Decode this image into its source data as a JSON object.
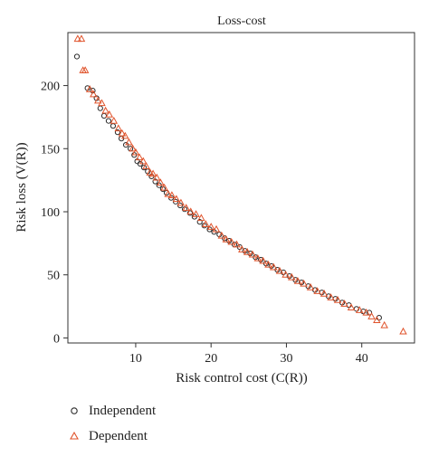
{
  "chart_data": {
    "type": "scatter",
    "title": "Loss-cost",
    "xlabel": "Risk control cost (C(R))",
    "ylabel": "Risk loss (V(R))",
    "xlim": [
      1,
      47
    ],
    "ylim": [
      -4,
      242
    ],
    "xticks": [
      10,
      20,
      30,
      40
    ],
    "yticks": [
      0,
      50,
      100,
      150,
      200
    ],
    "grid": false,
    "legend_position": "bottom-left",
    "series": [
      {
        "name": "Independent",
        "marker": "circle",
        "color": "#2b2b2b",
        "points": [
          [
            2.2,
            223
          ],
          [
            3.6,
            198
          ],
          [
            4.3,
            196
          ],
          [
            4.8,
            190
          ],
          [
            5.3,
            182
          ],
          [
            5.8,
            176
          ],
          [
            6.4,
            172
          ],
          [
            7.0,
            168
          ],
          [
            7.6,
            163
          ],
          [
            8.1,
            158
          ],
          [
            8.7,
            153
          ],
          [
            9.3,
            150
          ],
          [
            9.8,
            145
          ],
          [
            10.2,
            140
          ],
          [
            10.6,
            138
          ],
          [
            11.1,
            135
          ],
          [
            11.6,
            132
          ],
          [
            12.1,
            128
          ],
          [
            12.6,
            124
          ],
          [
            13.1,
            121
          ],
          [
            13.6,
            118
          ],
          [
            14.1,
            115
          ],
          [
            14.7,
            111
          ],
          [
            15.3,
            108
          ],
          [
            15.9,
            105
          ],
          [
            16.5,
            102
          ],
          [
            17.2,
            99
          ],
          [
            17.8,
            96
          ],
          [
            18.5,
            92
          ],
          [
            19.1,
            89
          ],
          [
            19.8,
            86
          ],
          [
            20.4,
            84
          ],
          [
            21.1,
            82
          ],
          [
            21.8,
            79
          ],
          [
            22.4,
            77
          ],
          [
            23.1,
            74
          ],
          [
            23.8,
            72
          ],
          [
            24.5,
            69
          ],
          [
            25.2,
            67
          ],
          [
            25.9,
            64
          ],
          [
            26.6,
            62
          ],
          [
            27.3,
            59
          ],
          [
            28.0,
            57
          ],
          [
            28.8,
            54
          ],
          [
            29.6,
            52
          ],
          [
            30.4,
            49
          ],
          [
            31.2,
            46
          ],
          [
            32.0,
            44
          ],
          [
            32.9,
            41
          ],
          [
            33.8,
            38
          ],
          [
            34.7,
            36
          ],
          [
            35.6,
            33
          ],
          [
            36.5,
            31
          ],
          [
            37.4,
            28
          ],
          [
            38.3,
            26
          ],
          [
            39.3,
            23
          ],
          [
            40.2,
            21
          ],
          [
            41.0,
            20
          ],
          [
            42.3,
            16
          ]
        ]
      },
      {
        "name": "Dependent",
        "marker": "triangle",
        "color": "#e0532b",
        "points": [
          [
            2.3,
            237
          ],
          [
            2.8,
            237
          ],
          [
            3.0,
            212
          ],
          [
            3.3,
            212
          ],
          [
            3.9,
            197
          ],
          [
            4.4,
            193
          ],
          [
            5.0,
            188
          ],
          [
            5.5,
            186
          ],
          [
            6.0,
            180
          ],
          [
            6.5,
            177
          ],
          [
            7.1,
            172
          ],
          [
            7.7,
            166
          ],
          [
            8.2,
            162
          ],
          [
            8.6,
            160
          ],
          [
            9.1,
            155
          ],
          [
            9.6,
            150
          ],
          [
            10.0,
            147
          ],
          [
            10.5,
            143
          ],
          [
            11.0,
            140
          ],
          [
            11.4,
            136
          ],
          [
            11.9,
            131
          ],
          [
            12.3,
            130
          ],
          [
            12.8,
            127
          ],
          [
            13.3,
            123
          ],
          [
            13.8,
            119
          ],
          [
            14.3,
            114
          ],
          [
            14.8,
            113
          ],
          [
            15.4,
            110
          ],
          [
            16.0,
            107
          ],
          [
            16.7,
            103
          ],
          [
            17.3,
            100
          ],
          [
            18.0,
            98
          ],
          [
            18.7,
            95
          ],
          [
            19.3,
            90
          ],
          [
            20.0,
            88
          ],
          [
            20.7,
            86
          ],
          [
            21.4,
            81
          ],
          [
            22.0,
            78
          ],
          [
            22.7,
            76
          ],
          [
            23.4,
            74
          ],
          [
            24.1,
            70
          ],
          [
            24.8,
            68
          ],
          [
            25.5,
            66
          ],
          [
            26.2,
            63
          ],
          [
            26.9,
            61
          ],
          [
            27.6,
            58
          ],
          [
            28.3,
            56
          ],
          [
            29.1,
            53
          ],
          [
            29.9,
            50
          ],
          [
            30.7,
            48
          ],
          [
            31.5,
            45
          ],
          [
            32.3,
            43
          ],
          [
            33.2,
            40
          ],
          [
            34.1,
            37
          ],
          [
            35.0,
            35
          ],
          [
            35.9,
            32
          ],
          [
            36.8,
            30
          ],
          [
            37.7,
            27
          ],
          [
            38.6,
            24
          ],
          [
            39.7,
            22
          ],
          [
            40.6,
            20
          ],
          [
            41.3,
            17
          ],
          [
            42.0,
            14
          ],
          [
            43.0,
            10
          ],
          [
            45.5,
            5
          ]
        ]
      }
    ]
  }
}
